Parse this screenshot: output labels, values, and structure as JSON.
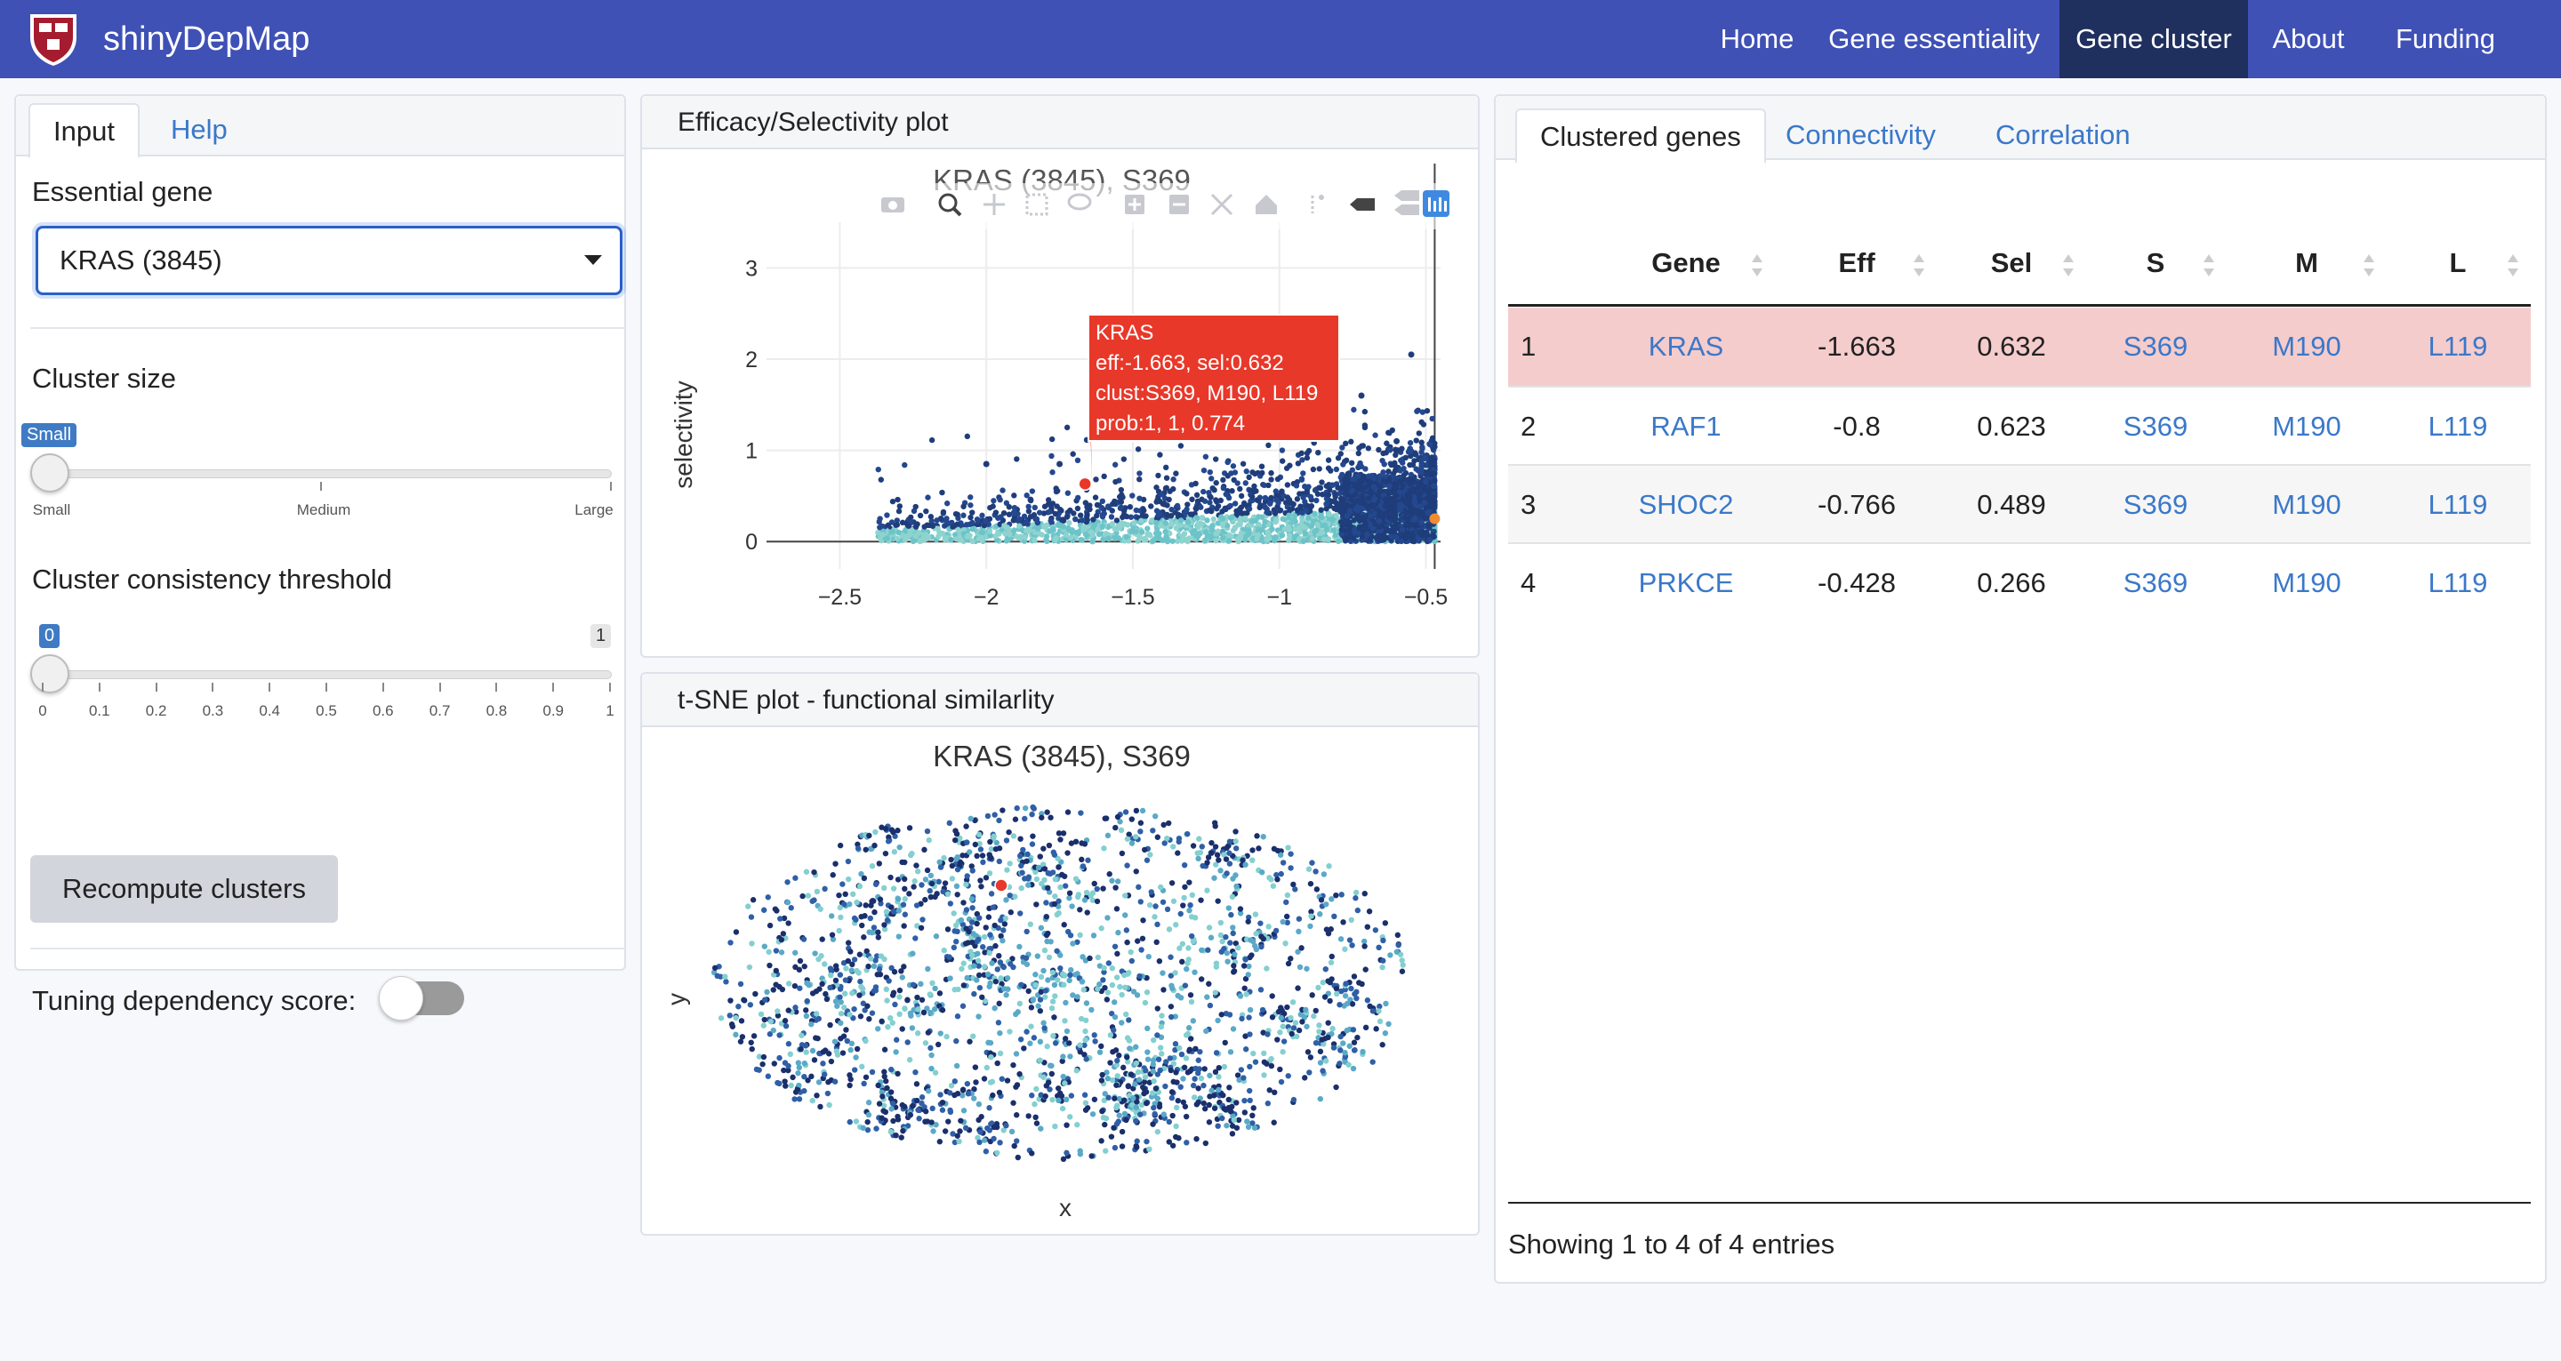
{
  "navbar": {
    "brand": "shinyDepMap",
    "items": [
      {
        "label": "Home",
        "active": false
      },
      {
        "label": "Gene essentiality",
        "active": false
      },
      {
        "label": "Gene cluster",
        "active": true
      },
      {
        "label": "About",
        "active": false
      },
      {
        "label": "Funding",
        "active": false
      }
    ]
  },
  "left_panel": {
    "tabs": [
      {
        "label": "Input",
        "active": true
      },
      {
        "label": "Help",
        "active": false
      }
    ],
    "essential_gene": {
      "label": "Essential gene",
      "value": "KRAS (3845)"
    },
    "cluster_size": {
      "label": "Cluster size",
      "value_label": "Small",
      "value": "Small",
      "ticks": [
        "Small",
        "Medium",
        "Large"
      ]
    },
    "consistency": {
      "label": "Cluster consistency threshold",
      "value": 0,
      "min_label": "0",
      "max_label": "1",
      "ticks": [
        "0",
        "0.1",
        "0.2",
        "0.3",
        "0.4",
        "0.5",
        "0.6",
        "0.7",
        "0.8",
        "0.9",
        "1"
      ]
    },
    "recompute_label": "Recompute clusters",
    "tuning_label": "Tuning dependency score:",
    "tuning_on": false
  },
  "efficacy_plot": {
    "panel_title": "Efficacy/Selectivity plot",
    "plot_title": "KRAS (3845), S369",
    "ylabel": "selectivity",
    "x_ticks": [
      "−2.5",
      "−2",
      "−1.5",
      "−1",
      "−0.5"
    ],
    "y_ticks": [
      "0",
      "1",
      "2",
      "3"
    ],
    "toolbar_icons": [
      "camera-icon",
      "zoom-icon",
      "pan-icon",
      "box-select-icon",
      "lasso-icon",
      "zoom-in-icon",
      "zoom-out-icon",
      "autoscale-icon",
      "home-icon",
      "spike-icon",
      "hover-closest-icon",
      "hover-compare-icon",
      "plotly-logo-icon"
    ],
    "tooltip": {
      "gene": "KRAS",
      "line1": "eff:-1.663, sel:0.632",
      "line2": "clust:S369, M190, L119",
      "line3": "prob:1, 1, 0.774",
      "color": "#e8382a"
    }
  },
  "tsne_plot": {
    "panel_title": "t-SNE plot - functional similarlity",
    "plot_title": "KRAS (3845), S369",
    "xlabel": "x",
    "ylabel": "y"
  },
  "chart_data": [
    {
      "type": "scatter",
      "title": "KRAS (3845), S369",
      "xlabel": "",
      "ylabel": "selectivity",
      "xlim": [
        -2.75,
        -0.45
      ],
      "ylim": [
        -0.3,
        3.5
      ],
      "x_ticks": [
        -2.5,
        -2,
        -1.5,
        -1,
        -0.5
      ],
      "y_ticks": [
        0,
        1,
        2,
        3
      ],
      "highlight": {
        "name": "KRAS",
        "x": -1.663,
        "y": 0.632,
        "color": "#e8382a"
      },
      "colors": [
        "#1f3d7a",
        "#6cc4c9",
        "#24488f",
        "#8fd3cf"
      ]
    },
    {
      "type": "scatter",
      "title": "KRAS (3845), S369",
      "xlabel": "x",
      "ylabel": "y",
      "highlight": {
        "name": "KRAS",
        "color": "#e8382a"
      },
      "colors": [
        "#1a2f6b",
        "#5aa9c7",
        "#2f5fa6",
        "#84cfd0"
      ]
    }
  ],
  "right_panel": {
    "tabs": [
      {
        "label": "Clustered genes",
        "active": true
      },
      {
        "label": "Connectivity",
        "active": false
      },
      {
        "label": "Correlation",
        "active": false
      }
    ],
    "columns": [
      "Gene",
      "Eff",
      "Sel",
      "S",
      "M",
      "L"
    ],
    "rows": [
      {
        "idx": "1",
        "gene": "KRAS",
        "eff": "-1.663",
        "sel": "0.632",
        "s": "S369",
        "m": "M190",
        "l": "L119",
        "highlight": true
      },
      {
        "idx": "2",
        "gene": "RAF1",
        "eff": "-0.8",
        "sel": "0.623",
        "s": "S369",
        "m": "M190",
        "l": "L119",
        "highlight": false
      },
      {
        "idx": "3",
        "gene": "SHOC2",
        "eff": "-0.766",
        "sel": "0.489",
        "s": "S369",
        "m": "M190",
        "l": "L119",
        "highlight": false
      },
      {
        "idx": "4",
        "gene": "PRKCE",
        "eff": "-0.428",
        "sel": "0.266",
        "s": "S369",
        "m": "M190",
        "l": "L119",
        "highlight": false
      }
    ],
    "footer": "Showing 1 to 4 of 4 entries",
    "highlight_color": "#f5cccc"
  }
}
